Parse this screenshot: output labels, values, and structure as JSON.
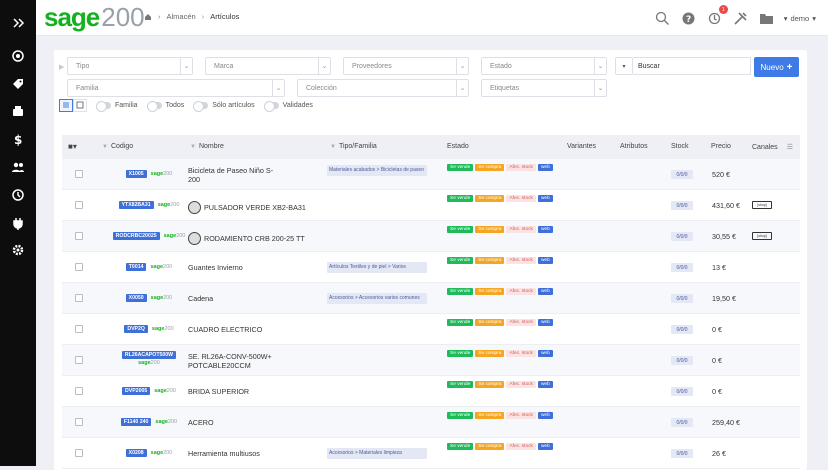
{
  "sidebar": {
    "icons": [
      "expand-icon",
      "target-icon",
      "tag-icon",
      "cash-register-icon",
      "dollar-icon",
      "people-icon",
      "history-icon",
      "plug-icon",
      "settings-icon"
    ]
  },
  "header": {
    "logo_brand": "sage",
    "logo_number": "200",
    "breadcrumb": [
      "Almacén",
      "Artículos"
    ],
    "notification_count": "1",
    "user": "demo"
  },
  "filters": {
    "tipo": "Tipo",
    "marca": "Marca",
    "proveedores": "Proveedores",
    "estado": "Estado",
    "familia": "Familia",
    "coleccion": "Colección",
    "etiquetas": "Etiquetas",
    "buscar": "Buscar",
    "nuevo": "Nuevo"
  },
  "toggles": [
    "Familia",
    "Todos",
    "Sólo artículos",
    "Validades"
  ],
  "columns": {
    "codigo": "Codigo",
    "nombre": "Nombre",
    "tipo": "Tipo/Familia",
    "estado": "Estado",
    "variantes": "Variantes",
    "atributos": "Atributos",
    "stock": "Stock",
    "precio": "Precio",
    "canales": "Canales"
  },
  "tags": {
    "vende": "Se vende",
    "compra": "Se compra",
    "alec": "Afec. stock",
    "web": "web"
  },
  "sage_mark": {
    "brand": "sage",
    "num": "200"
  },
  "rows": [
    {
      "code": "X1005",
      "name": "Bicicleta de Paseo Niño S-200",
      "tipo": "Materiales acabados > Bicicletas de paseo",
      "stock": "0/0/0",
      "precio": "520 €",
      "thumb": false,
      "canal": ""
    },
    {
      "code": "YTX82BA31",
      "name": "PULSADOR VERDE XB2-BA31",
      "tipo": "",
      "stock": "0/0/0",
      "precio": "431,60 €",
      "thumb": true,
      "canal": "[shop]"
    },
    {
      "code": "RODCRBC20025",
      "name": "RODAMIENTO CRB 200-25 TT",
      "tipo": "",
      "stock": "0/0/0",
      "precio": "30,55 €",
      "thumb": true,
      "canal": "[shop]"
    },
    {
      "code": "T0014",
      "name": "Guantes Invierno",
      "tipo": "Artículos Textiles y de piel > Varios",
      "stock": "0/0/0",
      "precio": "13 €",
      "thumb": false,
      "canal": ""
    },
    {
      "code": "X0050",
      "name": "Cadena",
      "tipo": "Accesorios > Accesorios varios comunes",
      "stock": "0/0/0",
      "precio": "19,50 €",
      "thumb": false,
      "canal": ""
    },
    {
      "code": "DVP2Q",
      "name": "CUADRO ELECTRICO",
      "tipo": "",
      "stock": "0/0/0",
      "precio": "0 €",
      "thumb": false,
      "canal": ""
    },
    {
      "code": "RL26ACAPOT500W",
      "name": "SE. RL26A-CONV-500W+ POTCABLE20CCM",
      "tipo": "",
      "stock": "0/0/0",
      "precio": "0 €",
      "thumb": false,
      "canal": ""
    },
    {
      "code": "DVP2005",
      "name": "BRIDA SUPERIOR",
      "tipo": "",
      "stock": "0/0/0",
      "precio": "0 €",
      "thumb": false,
      "canal": ""
    },
    {
      "code": "F1140 240",
      "name": "ACERO",
      "tipo": "",
      "stock": "0/0/0",
      "precio": "259,40 €",
      "thumb": false,
      "canal": ""
    },
    {
      "code": "X0208",
      "name": "Herramienta multiusos",
      "tipo": "Accesorios > Materiales limpieza",
      "stock": "0/0/0",
      "precio": "26 €",
      "thumb": false,
      "canal": ""
    }
  ],
  "colors": {
    "accent": "#3f7be6",
    "brand": "#12b21e",
    "sidebar": "#0d0d0d"
  }
}
